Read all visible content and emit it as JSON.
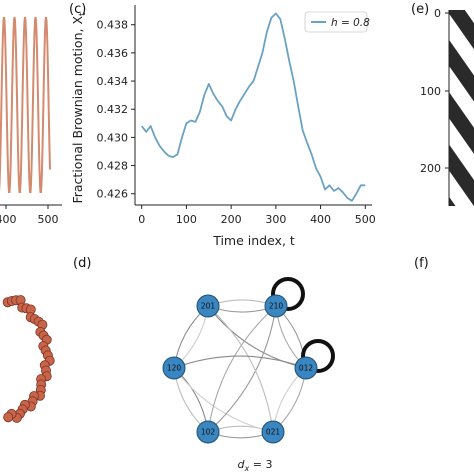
{
  "panels": {
    "a": {
      "x_ticks": [
        "400",
        "500"
      ]
    },
    "c": {
      "label": "(c)",
      "xlabel": "Time index, t",
      "ylabel": "Fractional Brownian motion, X",
      "ylabel_sub": "t",
      "legend": "h = 0.8"
    },
    "d": {
      "label": "(d)",
      "caption": "d",
      "caption_sub": "x",
      "caption_tail": " = 3"
    },
    "e": {
      "label": "(e)",
      "y_ticks": [
        "0",
        "100",
        "200"
      ]
    },
    "f": {
      "label": "(f)"
    }
  },
  "chart_data": [
    {
      "panel": "c",
      "type": "line",
      "xlabel": "Time index, t",
      "ylabel": "Fractional Brownian motion, X_t",
      "xlim": [
        -15,
        515
      ],
      "ylim": [
        0.4252,
        0.4394
      ],
      "xticks": [
        0,
        100,
        200,
        300,
        400,
        500
      ],
      "yticks": [
        0.426,
        0.428,
        0.43,
        0.432,
        0.434,
        0.436,
        0.438
      ],
      "grid": false,
      "legend_position": "top-right",
      "series": [
        {
          "name": "h = 0.8",
          "color": "#6aa2c4",
          "x": [
            0,
            10,
            20,
            30,
            40,
            50,
            60,
            70,
            80,
            90,
            100,
            110,
            120,
            130,
            140,
            150,
            160,
            170,
            180,
            190,
            200,
            210,
            220,
            230,
            240,
            250,
            260,
            270,
            280,
            290,
            300,
            310,
            320,
            330,
            340,
            350,
            360,
            370,
            380,
            390,
            400,
            410,
            420,
            430,
            440,
            450,
            460,
            470,
            480,
            490,
            500
          ],
          "y": [
            0.4308,
            0.4304,
            0.4308,
            0.43,
            0.4294,
            0.429,
            0.4287,
            0.4286,
            0.4288,
            0.43,
            0.431,
            0.4312,
            0.4311,
            0.4318,
            0.433,
            0.4338,
            0.4331,
            0.4326,
            0.4322,
            0.4315,
            0.4312,
            0.432,
            0.4326,
            0.4331,
            0.4336,
            0.434,
            0.435,
            0.436,
            0.4375,
            0.4385,
            0.4388,
            0.4384,
            0.437,
            0.4354,
            0.434,
            0.4322,
            0.4305,
            0.4296,
            0.4288,
            0.4278,
            0.4272,
            0.4263,
            0.4266,
            0.4262,
            0.4264,
            0.4261,
            0.4257,
            0.4255,
            0.426,
            0.4266,
            0.4266
          ]
        }
      ]
    },
    {
      "panel": "d",
      "type": "network",
      "nodes": [
        "201",
        "210",
        "120",
        "012",
        "102",
        "021"
      ],
      "node_color": "#3a86c0",
      "self_loops": [
        "210",
        "012"
      ],
      "edges": [
        [
          "201",
          "210"
        ],
        [
          "210",
          "201"
        ],
        [
          "201",
          "120"
        ],
        [
          "120",
          "201"
        ],
        [
          "210",
          "012"
        ],
        [
          "012",
          "210"
        ],
        [
          "120",
          "102"
        ],
        [
          "102",
          "120"
        ],
        [
          "012",
          "021"
        ],
        [
          "021",
          "012"
        ],
        [
          "102",
          "021"
        ],
        [
          "021",
          "102"
        ],
        [
          "201",
          "012"
        ],
        [
          "120",
          "021"
        ],
        [
          "210",
          "102"
        ],
        [
          "102",
          "210"
        ],
        [
          "021",
          "201"
        ],
        [
          "012",
          "120"
        ]
      ]
    }
  ]
}
